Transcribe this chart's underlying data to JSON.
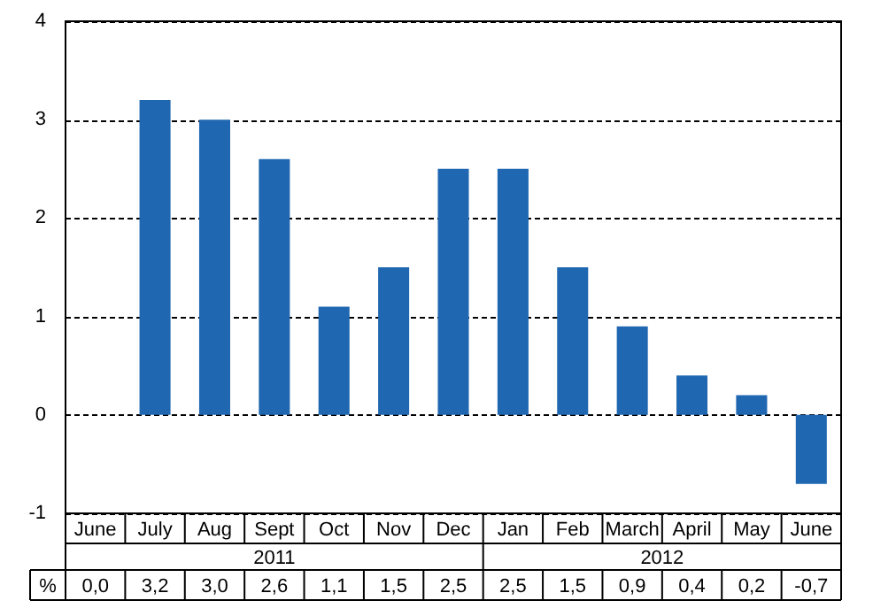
{
  "chart_data": {
    "type": "bar",
    "ylabel": "%",
    "categories": [
      "June",
      "July",
      "Aug",
      "Sept",
      "Oct",
      "Nov",
      "Dec",
      "Jan",
      "Feb",
      "March",
      "April",
      "May",
      "June"
    ],
    "values": [
      0.0,
      3.2,
      3.0,
      2.6,
      1.1,
      1.5,
      2.5,
      2.5,
      1.5,
      0.9,
      0.4,
      0.2,
      -0.7
    ],
    "value_labels": [
      "0,0",
      "3,2",
      "3,0",
      "2,6",
      "1,1",
      "1,5",
      "2,5",
      "2,5",
      "1,5",
      "0,9",
      "0,4",
      "0,2",
      "-0,7"
    ],
    "color": "#1f67b1",
    "ylim": [
      -1,
      4
    ],
    "yticks": [
      -1,
      0,
      1,
      2,
      3,
      4
    ],
    "grid": "y",
    "legend": false,
    "annotations": [
      "2011",
      "2012"
    ]
  }
}
